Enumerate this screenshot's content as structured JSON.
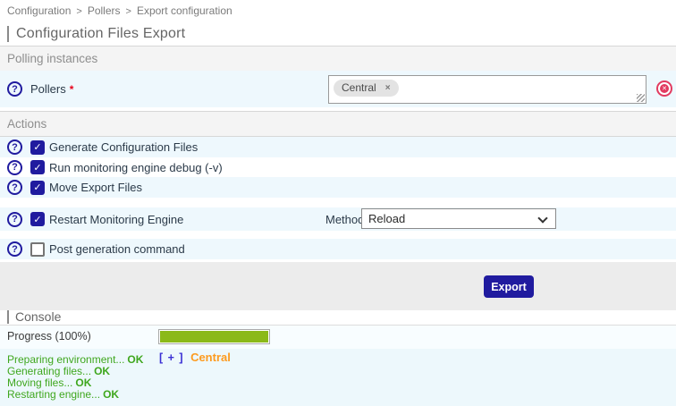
{
  "breadcrumb": {
    "items": [
      "Configuration",
      "Pollers",
      "Export configuration"
    ],
    "separator": ">"
  },
  "page": {
    "title": "Configuration Files Export"
  },
  "icons": {
    "help": "?",
    "check": "✓",
    "remove_tag": "×",
    "clear": "✕"
  },
  "form": {
    "polling_section_title": "Polling instances",
    "actions_section_title": "Actions",
    "pollers": {
      "label": "Pollers",
      "required_marker": "*",
      "tags": [
        {
          "label": "Central"
        }
      ]
    },
    "actions": {
      "generate": {
        "label": "Generate Configuration Files",
        "checked": true
      },
      "debug": {
        "label": "Run monitoring engine debug (-v)",
        "checked": true
      },
      "move": {
        "label": "Move Export Files",
        "checked": true
      },
      "restart": {
        "label": "Restart Monitoring Engine",
        "checked": true,
        "method_label": "Method",
        "method_value": "Reload"
      },
      "postcmd": {
        "label": "Post generation command",
        "checked": false
      }
    },
    "export_button_label": "Export"
  },
  "console": {
    "title": "Console",
    "progress_label": "Progress (100%)",
    "progress_percent": 100,
    "poller_toggle": "[ + ]",
    "poller_name": "Central",
    "status_lines": [
      {
        "text": "Preparing environment...",
        "status": "OK"
      },
      {
        "text": "Generating files...",
        "status": "OK"
      },
      {
        "text": "Moving files...",
        "status": "OK"
      },
      {
        "text": "Restarting engine...",
        "status": "OK"
      }
    ]
  },
  "colors": {
    "navy": "#201b9f",
    "row_blue": "#eef8fd",
    "section_bg": "#f4f4f4",
    "footer_gray": "#ececec",
    "progress_green": "#8bb919",
    "success_green": "#3fa71e",
    "poller_orange": "#fd9b1f",
    "toggle_blue": "#3a2fd4",
    "required_red": "#e8001b",
    "clear_red": "#e23b60",
    "label_dark": "#2b3a49",
    "muted_gray": "#8e8e8e",
    "title_gray": "#666666",
    "crumb_gray": "#7b7b7b",
    "console_blue": "#edf8fc",
    "progress_row_blue": "#f8fdff"
  }
}
